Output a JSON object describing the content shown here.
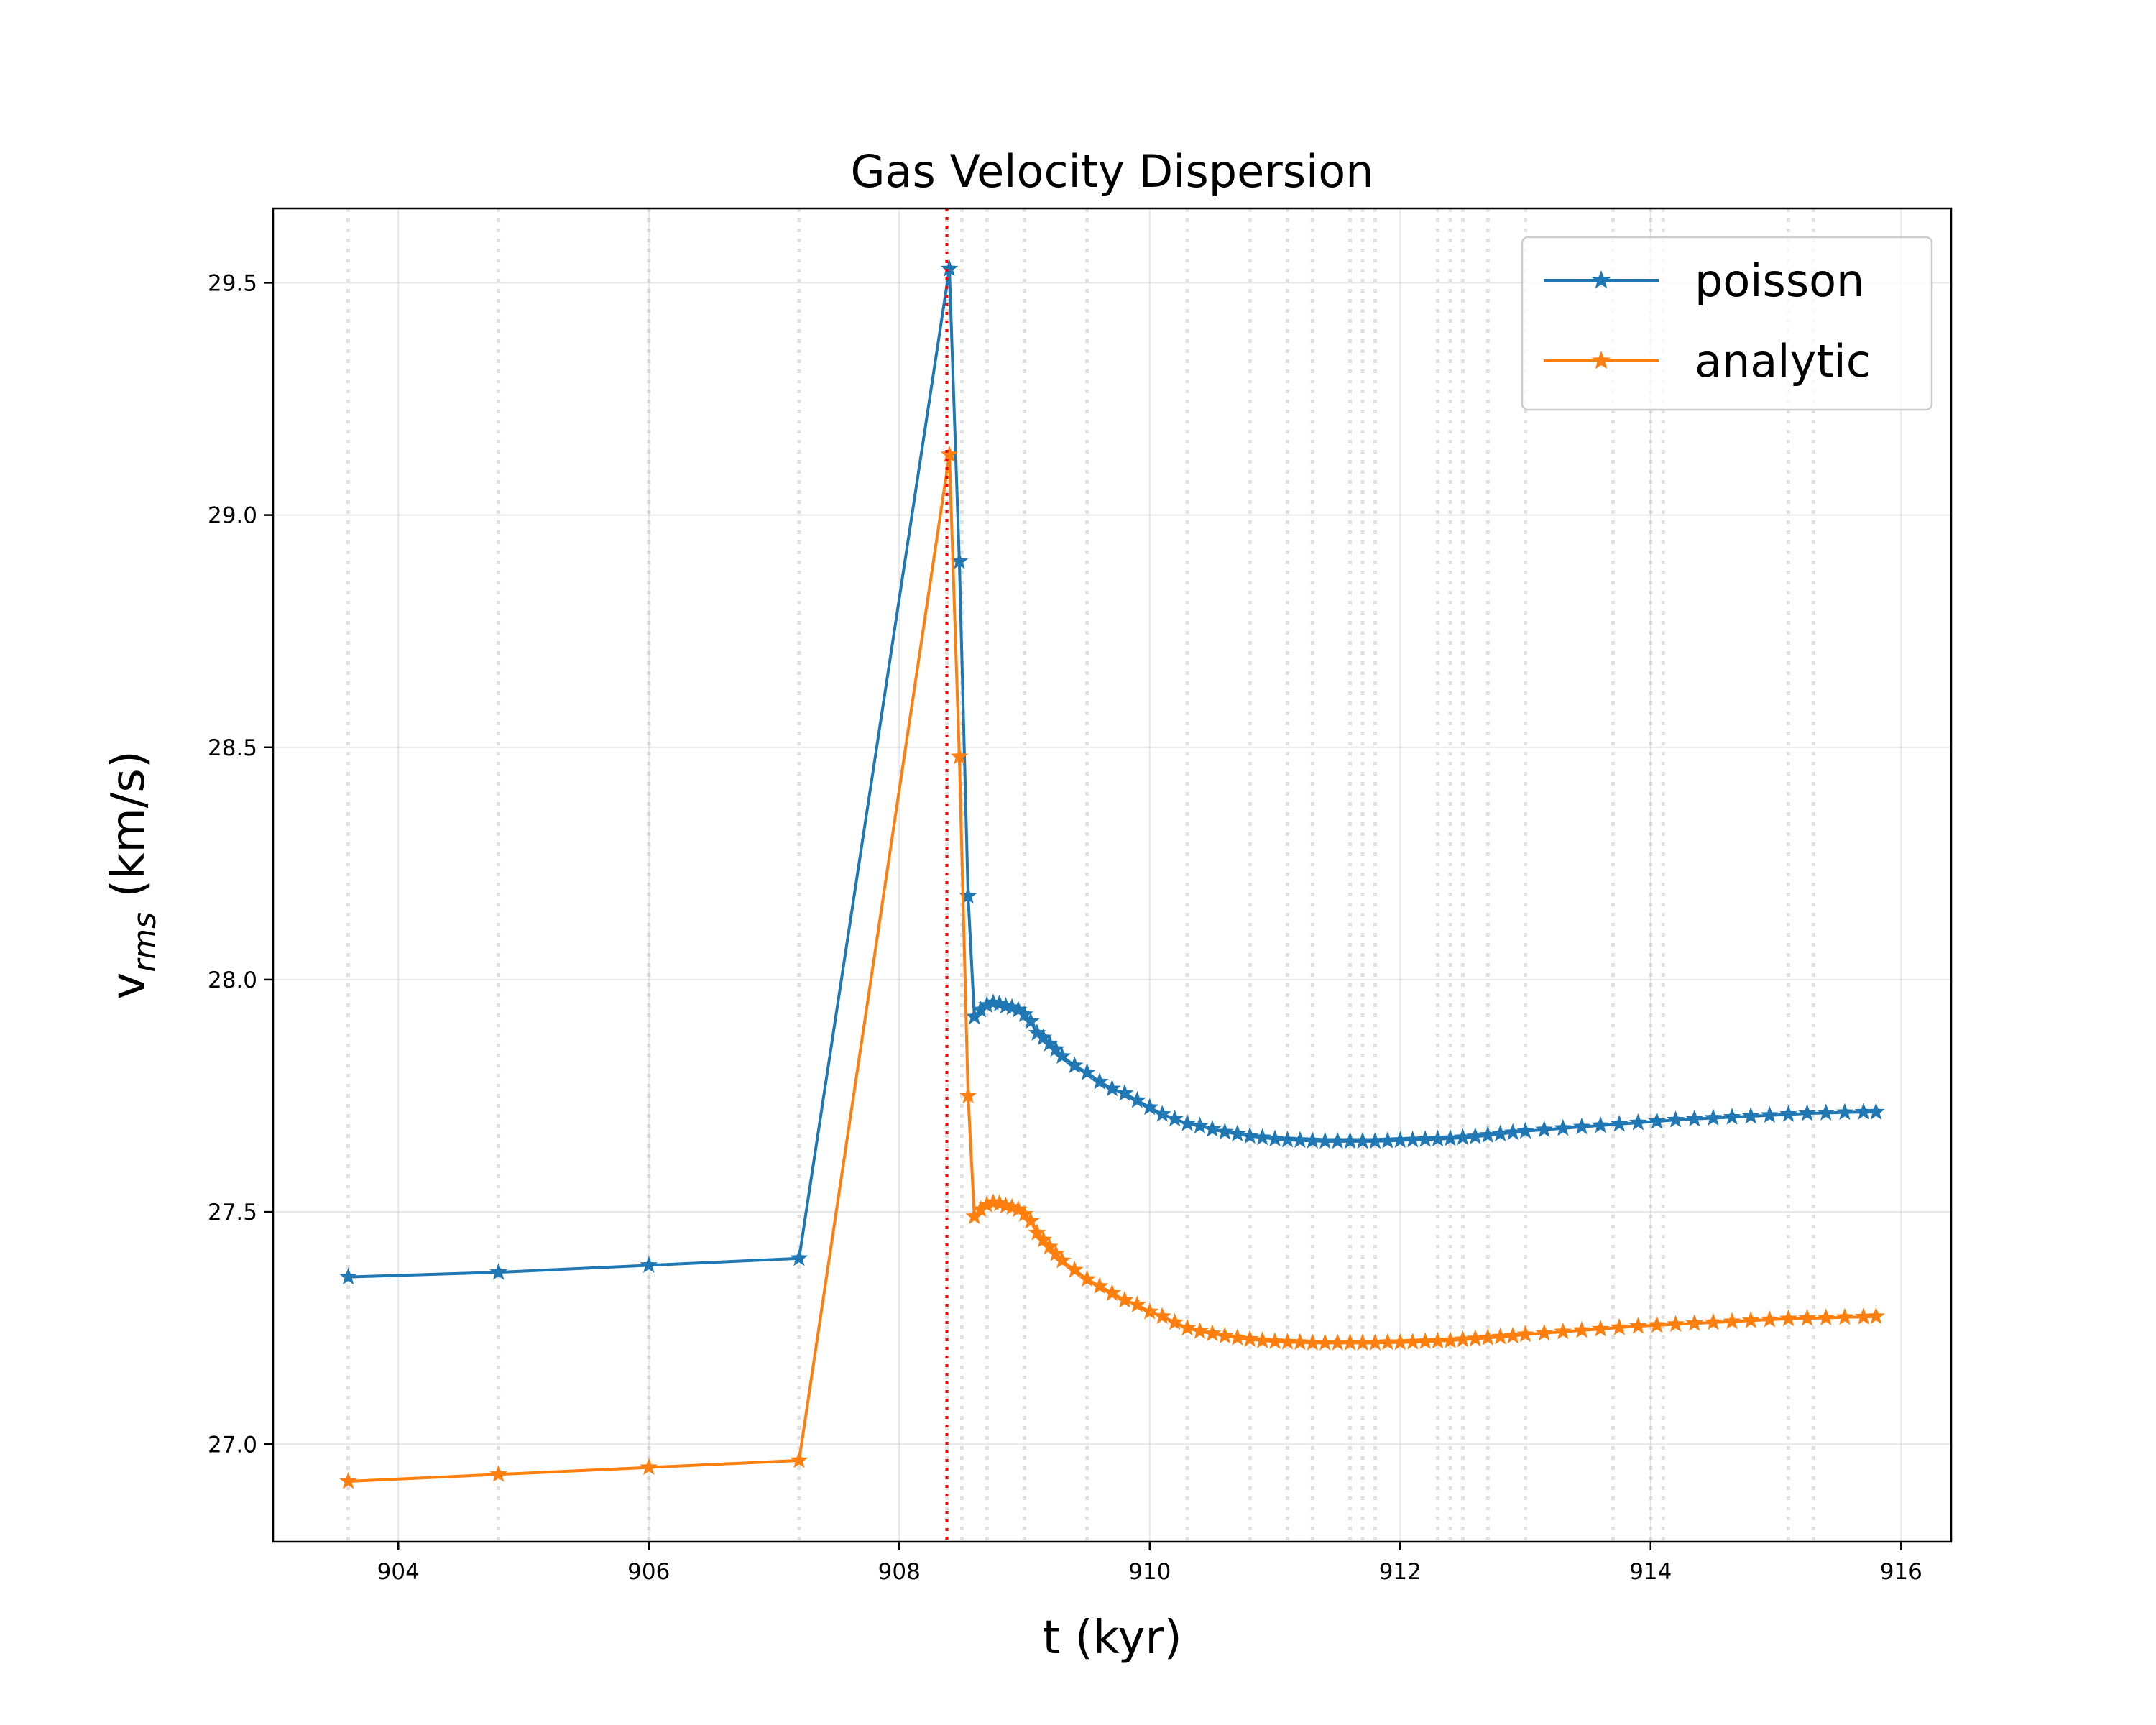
{
  "chart_data": {
    "type": "line",
    "title": "Gas Velocity Dispersion",
    "xlabel": "t (kyr)",
    "ylabel": {
      "base": "v",
      "sub": "rms",
      "rest": " (km/s)"
    },
    "xlim": [
      903,
      916.4
    ],
    "ylim": [
      26.79,
      29.66
    ],
    "xticks": [
      904,
      906,
      908,
      910,
      912,
      914,
      916
    ],
    "yticks": [
      27.0,
      27.5,
      28.0,
      28.5,
      29.0,
      29.5
    ],
    "ytick_labels": [
      "27.0",
      "27.5",
      "28.0",
      "28.5",
      "29.0",
      "29.5"
    ],
    "grid": true,
    "legend_position": "top-right",
    "colors": {
      "poisson": "#1f77b4",
      "analytic": "#ff7f0e",
      "event_line": "#ff0000"
    },
    "event_line_x": 908.38,
    "snapshot_marks_x": [
      903.6,
      904.8,
      906.0,
      907.2,
      908.38,
      908.5,
      908.7,
      909.0,
      909.5,
      910.3,
      910.8,
      911.1,
      911.3,
      911.6,
      911.7,
      911.8,
      912.3,
      912.4,
      912.5,
      912.7,
      913.0,
      913.7,
      914.0,
      914.1,
      915.1,
      915.3
    ],
    "series": [
      {
        "name": "poisson",
        "color": "#1f77b4",
        "x": [
          903.6,
          904.8,
          906.0,
          907.2,
          908.4,
          908.48,
          908.55,
          908.6,
          908.65,
          908.7,
          908.75,
          908.8,
          908.85,
          908.9,
          908.95,
          909.0,
          909.05,
          909.1,
          909.15,
          909.2,
          909.25,
          909.3,
          909.4,
          909.5,
          909.6,
          909.7,
          909.8,
          909.9,
          910.0,
          910.1,
          910.2,
          910.3,
          910.4,
          910.5,
          910.6,
          910.7,
          910.8,
          910.9,
          911.0,
          911.1,
          911.2,
          911.3,
          911.4,
          911.5,
          911.6,
          911.7,
          911.8,
          911.9,
          912.0,
          912.1,
          912.2,
          912.3,
          912.4,
          912.5,
          912.6,
          912.7,
          912.8,
          912.9,
          913.0,
          913.15,
          913.3,
          913.45,
          913.6,
          913.75,
          913.9,
          914.05,
          914.2,
          914.35,
          914.5,
          914.65,
          914.8,
          914.95,
          915.1,
          915.25,
          915.4,
          915.55,
          915.7,
          915.8
        ],
        "values": [
          27.36,
          27.37,
          27.385,
          27.4,
          29.53,
          28.9,
          28.18,
          27.92,
          27.935,
          27.945,
          27.95,
          27.948,
          27.943,
          27.94,
          27.935,
          27.925,
          27.91,
          27.885,
          27.875,
          27.862,
          27.85,
          27.835,
          27.815,
          27.8,
          27.78,
          27.765,
          27.755,
          27.74,
          27.725,
          27.71,
          27.7,
          27.69,
          27.685,
          27.678,
          27.672,
          27.668,
          27.663,
          27.66,
          27.657,
          27.655,
          27.654,
          27.653,
          27.652,
          27.652,
          27.652,
          27.652,
          27.652,
          27.653,
          27.654,
          27.655,
          27.656,
          27.657,
          27.658,
          27.66,
          27.662,
          27.665,
          27.668,
          27.671,
          27.674,
          27.677,
          27.68,
          27.683,
          27.686,
          27.689,
          27.692,
          27.695,
          27.698,
          27.7,
          27.702,
          27.704,
          27.706,
          27.708,
          27.71,
          27.712,
          27.713,
          27.714,
          27.715,
          27.715
        ]
      },
      {
        "name": "analytic",
        "color": "#ff7f0e",
        "x": [
          903.6,
          904.8,
          906.0,
          907.2,
          908.4,
          908.48,
          908.55,
          908.6,
          908.65,
          908.7,
          908.75,
          908.8,
          908.85,
          908.9,
          908.95,
          909.0,
          909.05,
          909.1,
          909.15,
          909.2,
          909.25,
          909.3,
          909.4,
          909.5,
          909.6,
          909.7,
          909.8,
          909.9,
          910.0,
          910.1,
          910.2,
          910.3,
          910.4,
          910.5,
          910.6,
          910.7,
          910.8,
          910.9,
          911.0,
          911.1,
          911.2,
          911.3,
          911.4,
          911.5,
          911.6,
          911.7,
          911.8,
          911.9,
          912.0,
          912.1,
          912.2,
          912.3,
          912.4,
          912.5,
          912.6,
          912.7,
          912.8,
          912.9,
          913.0,
          913.15,
          913.3,
          913.45,
          913.6,
          913.75,
          913.9,
          914.05,
          914.2,
          914.35,
          914.5,
          914.65,
          914.8,
          914.95,
          915.1,
          915.25,
          915.4,
          915.55,
          915.7,
          915.8
        ],
        "values": [
          26.92,
          26.935,
          26.95,
          26.965,
          29.13,
          28.48,
          27.75,
          27.49,
          27.505,
          27.515,
          27.52,
          27.518,
          27.513,
          27.51,
          27.505,
          27.495,
          27.48,
          27.455,
          27.44,
          27.425,
          27.41,
          27.395,
          27.375,
          27.355,
          27.34,
          27.325,
          27.31,
          27.3,
          27.285,
          27.275,
          27.262,
          27.25,
          27.243,
          27.238,
          27.233,
          27.229,
          27.226,
          27.223,
          27.221,
          27.22,
          27.219,
          27.218,
          27.218,
          27.218,
          27.218,
          27.218,
          27.218,
          27.219,
          27.219,
          27.22,
          27.221,
          27.222,
          27.223,
          27.225,
          27.227,
          27.229,
          27.231,
          27.233,
          27.236,
          27.239,
          27.242,
          27.245,
          27.248,
          27.251,
          27.254,
          27.256,
          27.258,
          27.26,
          27.262,
          27.264,
          27.266,
          27.268,
          27.27,
          27.271,
          27.272,
          27.273,
          27.274,
          27.275
        ]
      }
    ]
  }
}
